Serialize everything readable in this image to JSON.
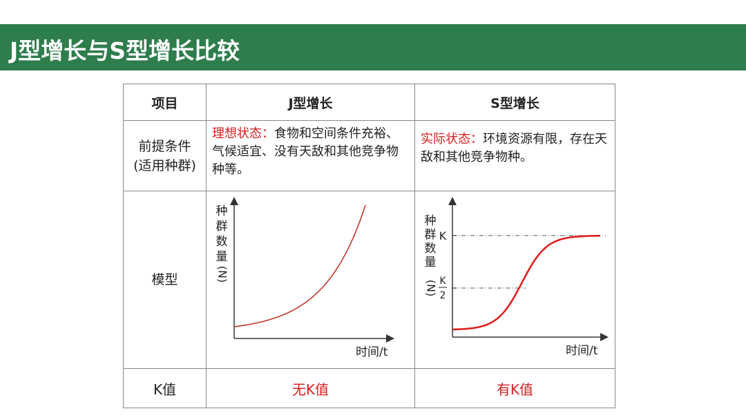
{
  "title": "J型增长与S型增长比较",
  "table": {
    "headers": [
      "项目",
      "J型增长",
      "S型增长"
    ],
    "condition_label_1": "前提条件",
    "condition_label_2": "(适用种群)",
    "j_condition_prefix": "理想状态：",
    "j_condition_text": "食物和空间条件充裕、气候适宜、没有天敌和其他竞争物种等。",
    "s_condition_prefix": "实际状态：",
    "s_condition_text": "环境资源有限，存在天敌和其他竞争物种。",
    "model_label": "模型",
    "k_label": "K值",
    "j_k_value": "无K值",
    "s_k_value": "有K值"
  },
  "chart_data": [
    {
      "type": "line",
      "curve": "exponential (J-shaped)",
      "ylabel": "种群数量(N)",
      "xlabel": "时间/t",
      "color": "#c0392b"
    },
    {
      "type": "line",
      "curve": "logistic (S-shaped)",
      "ylabel": "种群数量(N)",
      "xlabel": "时间/t",
      "y_ticks": [
        "K",
        "K/2"
      ],
      "k_mark": "K",
      "half_k_num": "K",
      "half_k_den": "2",
      "color": "#e02020"
    }
  ],
  "colors": {
    "banner": "#2e7d4c",
    "accent_red": "#d62020"
  }
}
